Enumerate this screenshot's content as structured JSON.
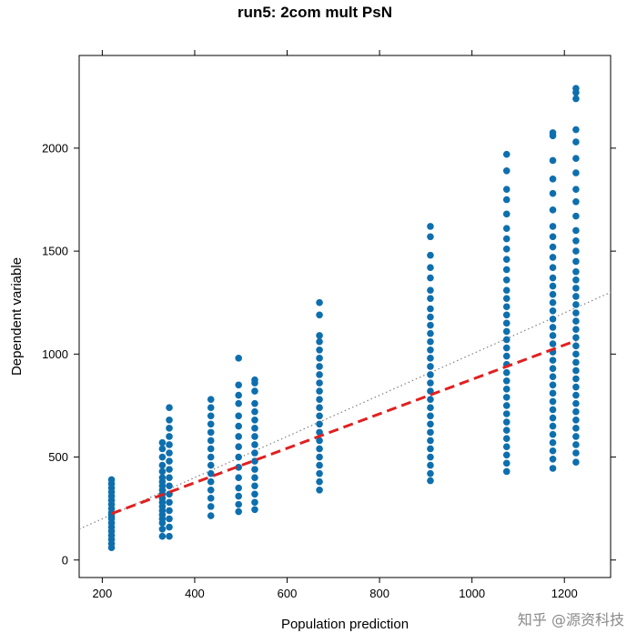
{
  "chart_data": {
    "type": "scatter",
    "title": "run5: 2com mult PsN",
    "xlabel": "Population prediction",
    "ylabel": "Dependent variable",
    "xlim": [
      150,
      1300
    ],
    "ylim": [
      -85,
      2450
    ],
    "xticks": [
      200,
      400,
      600,
      800,
      1000,
      1200
    ],
    "yticks": [
      0,
      500,
      1000,
      1500,
      2000
    ],
    "point_color": "#0e6fae",
    "reference_line": {
      "style": "dotted",
      "color": "#808080",
      "slope": 1,
      "intercept": 0
    },
    "trend_line": {
      "style": "dashed",
      "color": "#e02020",
      "x": [
        220,
        1225
      ],
      "y": [
        225,
        1065
      ]
    },
    "series": [
      {
        "x": 220,
        "y": [
          60,
          80,
          100,
          120,
          140,
          160,
          180,
          200,
          210,
          220,
          230,
          250,
          270,
          290,
          310,
          330,
          350,
          370,
          390
        ]
      },
      {
        "x": 330,
        "y": [
          115,
          150,
          180,
          200,
          220,
          240,
          260,
          280,
          300,
          320,
          340,
          360,
          380,
          400,
          430,
          460,
          500,
          540,
          570
        ]
      },
      {
        "x": 345,
        "y": [
          115,
          160,
          200,
          240,
          280,
          320,
          360,
          400,
          440,
          480,
          520,
          560,
          600,
          640,
          680,
          740
        ]
      },
      {
        "x": 435,
        "y": [
          215,
          260,
          300,
          340,
          380,
          420,
          460,
          500,
          540,
          580,
          620,
          660,
          700,
          740,
          780
        ]
      },
      {
        "x": 495,
        "y": [
          235,
          270,
          310,
          350,
          400,
          450,
          500,
          550,
          600,
          650,
          700,
          760,
          800,
          850,
          980
        ]
      },
      {
        "x": 530,
        "y": [
          245,
          280,
          320,
          360,
          400,
          440,
          480,
          520,
          560,
          600,
          640,
          680,
          720,
          760,
          820,
          860,
          875
        ]
      },
      {
        "x": 670,
        "y": [
          340,
          380,
          420,
          460,
          500,
          540,
          580,
          620,
          660,
          700,
          740,
          780,
          820,
          860,
          900,
          940,
          980,
          1020,
          1060,
          1090,
          1190,
          1250
        ]
      },
      {
        "x": 910,
        "y": [
          385,
          420,
          460,
          500,
          540,
          580,
          620,
          660,
          700,
          740,
          780,
          820,
          860,
          900,
          940,
          980,
          1020,
          1060,
          1100,
          1140,
          1180,
          1220,
          1270,
          1310,
          1370,
          1420,
          1480,
          1570,
          1620
        ]
      },
      {
        "x": 1075,
        "y": [
          430,
          470,
          510,
          550,
          590,
          630,
          670,
          710,
          750,
          790,
          830,
          870,
          910,
          950,
          990,
          1030,
          1070,
          1110,
          1150,
          1190,
          1230,
          1270,
          1310,
          1360,
          1410,
          1460,
          1510,
          1560,
          1610,
          1680,
          1750,
          1800,
          1890,
          1970
        ]
      },
      {
        "x": 1175,
        "y": [
          445,
          490,
          530,
          570,
          610,
          650,
          690,
          730,
          770,
          810,
          850,
          890,
          930,
          970,
          1010,
          1050,
          1090,
          1130,
          1170,
          1210,
          1250,
          1290,
          1330,
          1370,
          1420,
          1470,
          1520,
          1570,
          1620,
          1700,
          1780,
          1850,
          1940,
          2060,
          2075
        ]
      },
      {
        "x": 1225,
        "y": [
          475,
          520,
          560,
          600,
          640,
          680,
          720,
          760,
          800,
          840,
          880,
          920,
          960,
          1000,
          1040,
          1080,
          1120,
          1160,
          1200,
          1240,
          1280,
          1320,
          1360,
          1400,
          1450,
          1500,
          1550,
          1600,
          1670,
          1740,
          1800,
          1880,
          1950,
          2030,
          2090,
          2240,
          2270,
          2290
        ]
      }
    ]
  },
  "watermark": "知乎 @源资科技"
}
